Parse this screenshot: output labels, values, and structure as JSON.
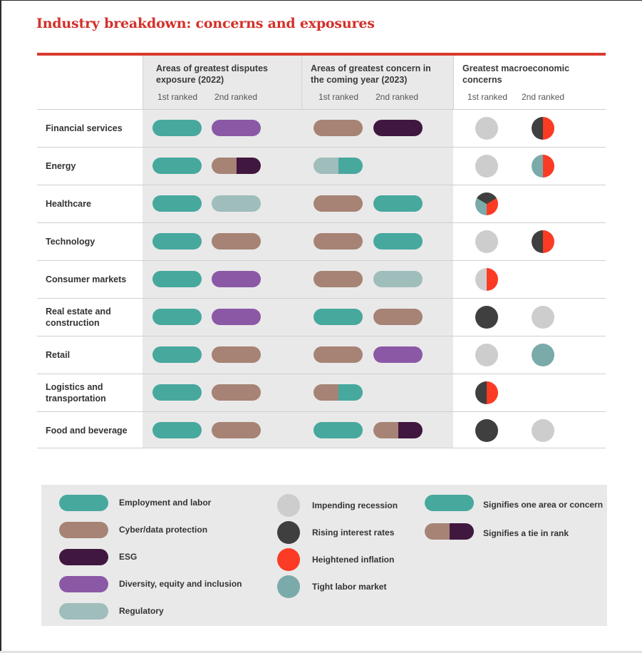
{
  "title": "Industry breakdown: concerns and exposures",
  "colors": {
    "employment": "#47a89e",
    "cyber": "#a68374",
    "esg": "#40173f",
    "dei": "#8b58a6",
    "regulatory": "#9fbdbb",
    "recession": "#cdcdcd",
    "interest": "#3f3f3f",
    "inflation": "#fc3b24",
    "labor": "#7aaaa9",
    "accent": "#d4302a"
  },
  "groups": [
    {
      "label": "Areas of greatest disputes exposure (2022)",
      "rank1": "1st ranked",
      "rank2": "2nd ranked"
    },
    {
      "label": "Areas of greatest concern in the coming year (2023)",
      "rank1": "1st ranked",
      "rank2": "2nd ranked"
    },
    {
      "label": "Greatest macroeconomic concerns",
      "rank1": "1st ranked",
      "rank2": "2nd ranked"
    }
  ],
  "rows": [
    {
      "industry": "Financial services",
      "exposure": [
        [
          "employment"
        ],
        [
          "dei"
        ]
      ],
      "concern": [
        [
          "cyber"
        ],
        [
          "esg"
        ]
      ],
      "macro": [
        [
          "recession"
        ],
        [
          "interest",
          "inflation"
        ]
      ]
    },
    {
      "industry": "Energy",
      "exposure": [
        [
          "employment"
        ],
        [
          "cyber",
          "esg"
        ]
      ],
      "concern": [
        [
          "regulatory",
          "employment"
        ],
        []
      ],
      "macro": [
        [
          "recession"
        ],
        [
          "labor",
          "inflation"
        ]
      ]
    },
    {
      "industry": "Healthcare",
      "exposure": [
        [
          "employment"
        ],
        [
          "regulatory"
        ]
      ],
      "concern": [
        [
          "cyber"
        ],
        [
          "employment"
        ]
      ],
      "macro": [
        [
          "interest",
          "inflation",
          "labor"
        ],
        []
      ]
    },
    {
      "industry": "Technology",
      "exposure": [
        [
          "employment"
        ],
        [
          "cyber"
        ]
      ],
      "concern": [
        [
          "cyber"
        ],
        [
          "employment"
        ]
      ],
      "macro": [
        [
          "recession"
        ],
        [
          "interest",
          "inflation"
        ]
      ]
    },
    {
      "industry": "Consumer markets",
      "exposure": [
        [
          "employment"
        ],
        [
          "dei"
        ]
      ],
      "concern": [
        [
          "cyber"
        ],
        [
          "regulatory"
        ]
      ],
      "macro": [
        [
          "recession",
          "inflation"
        ],
        []
      ]
    },
    {
      "industry": "Real estate and construction",
      "exposure": [
        [
          "employment"
        ],
        [
          "dei"
        ]
      ],
      "concern": [
        [
          "employment"
        ],
        [
          "cyber"
        ]
      ],
      "macro": [
        [
          "interest"
        ],
        [
          "recession"
        ]
      ]
    },
    {
      "industry": "Retail",
      "exposure": [
        [
          "employment"
        ],
        [
          "cyber"
        ]
      ],
      "concern": [
        [
          "cyber"
        ],
        [
          "dei"
        ]
      ],
      "macro": [
        [
          "recession"
        ],
        [
          "labor"
        ]
      ]
    },
    {
      "industry": "Logistics and transportation",
      "exposure": [
        [
          "employment"
        ],
        [
          "cyber"
        ]
      ],
      "concern": [
        [
          "cyber",
          "employment"
        ],
        []
      ],
      "macro": [
        [
          "interest",
          "inflation"
        ],
        []
      ]
    },
    {
      "industry": "Food and beverage",
      "exposure": [
        [
          "employment"
        ],
        [
          "cyber"
        ]
      ],
      "concern": [
        [
          "employment"
        ],
        [
          "cyber",
          "esg"
        ]
      ],
      "macro": [
        [
          "interest"
        ],
        [
          "recession"
        ]
      ]
    }
  ],
  "legend": {
    "pills": [
      {
        "key": "employment",
        "label": "Employment and labor"
      },
      {
        "key": "cyber",
        "label": "Cyber/data protection"
      },
      {
        "key": "esg",
        "label": "ESG"
      },
      {
        "key": "dei",
        "label": "Diversity, equity and inclusion"
      },
      {
        "key": "regulatory",
        "label": "Regulatory"
      }
    ],
    "dots": [
      {
        "key": "recession",
        "label": "Impending recession"
      },
      {
        "key": "interest",
        "label": "Rising interest rates"
      },
      {
        "key": "inflation",
        "label": "Heightened inflation"
      },
      {
        "key": "labor",
        "label": "Tight labor market"
      }
    ],
    "signifiers": [
      {
        "keys": [
          "employment"
        ],
        "label": "Signifies one area or concern"
      },
      {
        "keys": [
          "cyber",
          "esg"
        ],
        "label": "Signifies a tie in rank"
      }
    ]
  }
}
